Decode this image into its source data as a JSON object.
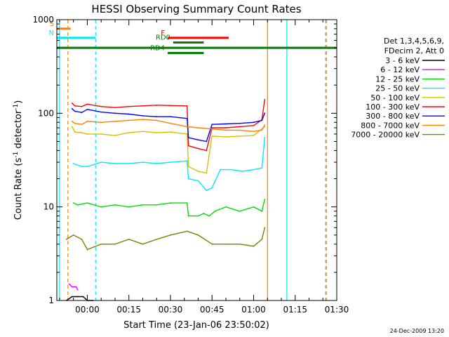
{
  "chart_data": {
    "type": "line",
    "title": "HESSI Observing Summary Count Rates",
    "xlabel": "Start Time (23-Jan-06 23:50:02)",
    "ylabel_pre": "Count Rate (s",
    "ylabel_sup1": "-1",
    "ylabel_mid": " detector",
    "ylabel_sup2": "-1",
    "ylabel_post": ")",
    "yscale": "log",
    "ylim": [
      1,
      1000
    ],
    "xlim_minutes": [
      -11,
      90
    ],
    "x_ticks": [
      {
        "m": 0,
        "label": "00:00"
      },
      {
        "m": 15,
        "label": "00:15"
      },
      {
        "m": 30,
        "label": "00:30"
      },
      {
        "m": 45,
        "label": "00:45"
      },
      {
        "m": 60,
        "label": "01:00"
      },
      {
        "m": 75,
        "label": "01:15"
      },
      {
        "m": 90,
        "label": "01:30"
      }
    ],
    "y_ticks": [
      {
        "v": 1,
        "label": "1"
      },
      {
        "v": 10,
        "label": "10"
      },
      {
        "v": 100,
        "label": "100"
      },
      {
        "v": 1000,
        "label": "1000"
      }
    ],
    "legend_header": [
      "Det 1,3,4,5,6,9,",
      "FDecim 2, Att 0"
    ],
    "series": [
      {
        "name": "3 - 6 keV",
        "color": "#000000",
        "points": [
          [
            -7.5,
            1
          ],
          [
            -5.5,
            1.1
          ],
          [
            -3.5,
            1.1
          ],
          [
            -1.5,
            1.1
          ],
          [
            0,
            1
          ],
          [
            2,
            1
          ]
        ]
      },
      {
        "name": "6 - 12 keV",
        "color": "#ff00ff",
        "points": [
          [
            -6.5,
            1.5
          ],
          [
            -5.5,
            1.4
          ],
          [
            -4,
            1.4
          ],
          [
            -3.5,
            1.3
          ]
        ]
      },
      {
        "name": "12 - 25 keV",
        "color": "#00dd00",
        "points": [
          [
            -5,
            11
          ],
          [
            -3.5,
            10.5
          ],
          [
            0,
            11
          ],
          [
            5,
            10
          ],
          [
            10,
            10.5
          ],
          [
            15,
            10
          ],
          [
            20,
            10.5
          ],
          [
            25,
            10.5
          ],
          [
            30,
            11
          ],
          [
            36,
            11
          ],
          [
            36.5,
            8
          ],
          [
            40,
            8
          ],
          [
            42,
            8.5
          ],
          [
            44,
            8
          ],
          [
            46,
            9
          ],
          [
            50,
            10
          ],
          [
            55,
            9
          ],
          [
            60,
            10
          ],
          [
            63,
            9
          ],
          [
            64,
            12
          ]
        ]
      },
      {
        "name": "25 - 50 keV",
        "color": "#00e8ff",
        "points": [
          [
            -5,
            29
          ],
          [
            -2,
            27
          ],
          [
            0,
            27
          ],
          [
            5,
            30
          ],
          [
            10,
            29
          ],
          [
            15,
            29
          ],
          [
            20,
            30
          ],
          [
            25,
            29
          ],
          [
            30,
            30
          ],
          [
            36,
            31
          ],
          [
            36.5,
            20
          ],
          [
            40,
            19
          ],
          [
            43,
            15
          ],
          [
            45,
            16
          ],
          [
            48,
            25
          ],
          [
            52,
            25
          ],
          [
            56,
            24
          ],
          [
            60,
            25
          ],
          [
            63,
            26
          ],
          [
            64,
            55
          ]
        ]
      },
      {
        "name": "50 - 100 keV",
        "color": "#d8c000",
        "points": [
          [
            -5.5,
            72
          ],
          [
            -4.5,
            63
          ],
          [
            -2,
            62
          ],
          [
            0,
            60
          ],
          [
            5,
            60
          ],
          [
            10,
            58
          ],
          [
            15,
            62
          ],
          [
            20,
            64
          ],
          [
            25,
            62
          ],
          [
            30,
            63
          ],
          [
            36,
            60
          ],
          [
            36.5,
            27
          ],
          [
            40,
            24
          ],
          [
            43,
            23
          ],
          [
            45,
            57
          ],
          [
            50,
            56
          ],
          [
            55,
            57
          ],
          [
            60,
            58
          ],
          [
            64,
            72
          ]
        ]
      },
      {
        "name": "100 - 300 keV",
        "color": "#ff0000",
        "points": [
          [
            -5.5,
            128
          ],
          [
            -4.5,
            120
          ],
          [
            -2,
            118
          ],
          [
            0,
            125
          ],
          [
            5,
            118
          ],
          [
            10,
            115
          ],
          [
            15,
            118
          ],
          [
            20,
            120
          ],
          [
            25,
            122
          ],
          [
            30,
            121
          ],
          [
            36,
            120
          ],
          [
            36.5,
            45
          ],
          [
            40,
            42
          ],
          [
            43,
            40
          ],
          [
            45,
            70
          ],
          [
            50,
            70
          ],
          [
            55,
            72
          ],
          [
            60,
            74
          ],
          [
            63,
            85
          ],
          [
            64,
            140
          ]
        ]
      },
      {
        "name": "300 - 800 keV",
        "color": "#0000ff",
        "points": [
          [
            -5.5,
            112
          ],
          [
            -4.5,
            105
          ],
          [
            -2,
            102
          ],
          [
            0,
            110
          ],
          [
            5,
            103
          ],
          [
            10,
            100
          ],
          [
            15,
            98
          ],
          [
            20,
            94
          ],
          [
            25,
            92
          ],
          [
            30,
            92
          ],
          [
            36,
            88
          ],
          [
            36.5,
            55
          ],
          [
            40,
            52
          ],
          [
            43,
            50
          ],
          [
            45,
            76
          ],
          [
            50,
            77
          ],
          [
            55,
            78
          ],
          [
            60,
            80
          ],
          [
            63,
            84
          ],
          [
            64,
            100
          ]
        ]
      },
      {
        "name": "800 - 7000 keV",
        "color": "#ff8000",
        "points": [
          [
            -5.5,
            82
          ],
          [
            -4.5,
            78
          ],
          [
            -2,
            76
          ],
          [
            0,
            82
          ],
          [
            5,
            80
          ],
          [
            10,
            82
          ],
          [
            15,
            84
          ],
          [
            20,
            86
          ],
          [
            25,
            84
          ],
          [
            30,
            78
          ],
          [
            36,
            72
          ],
          [
            40,
            70
          ],
          [
            45,
            68
          ],
          [
            50,
            66
          ],
          [
            55,
            66
          ],
          [
            60,
            64
          ],
          [
            63,
            66
          ],
          [
            64,
            75
          ]
        ]
      },
      {
        "name": "7000 - 20000 keV",
        "color": "#808000",
        "points": [
          [
            -7.5,
            4.5
          ],
          [
            -5,
            5
          ],
          [
            -2,
            4.5
          ],
          [
            0,
            3.5
          ],
          [
            5,
            4
          ],
          [
            10,
            4
          ],
          [
            15,
            4.5
          ],
          [
            20,
            4
          ],
          [
            25,
            4.5
          ],
          [
            30,
            5
          ],
          [
            36,
            5.5
          ],
          [
            40,
            5
          ],
          [
            45,
            4
          ],
          [
            50,
            4
          ],
          [
            55,
            4
          ],
          [
            60,
            3.8
          ],
          [
            63,
            4.5
          ],
          [
            64,
            6
          ]
        ]
      }
    ],
    "bars": [
      {
        "label": "S",
        "color": "#ff8000",
        "y": 800,
        "from": -11,
        "to": -6
      },
      {
        "label": "N",
        "color": "#00e8ff",
        "y": 640,
        "from": -11,
        "to": 3
      },
      {
        "label": "F",
        "color": "#ff0000",
        "y": 640,
        "from": 29,
        "to": 51
      },
      {
        "label": "RD0",
        "color": "#008000",
        "y": 570,
        "from": 31,
        "to": 42
      },
      {
        "label": "",
        "color": "#008000",
        "y": 500,
        "from": -11,
        "to": 90
      },
      {
        "label": "RD4",
        "color": "#008000",
        "y": 440,
        "from": 29,
        "to": 42
      }
    ],
    "vlines": [
      {
        "m": -10,
        "color": "#00e8ff",
        "dash": false
      },
      {
        "m": -7,
        "color": "#ff8000",
        "dash": true
      },
      {
        "m": 3,
        "color": "#00e8ff",
        "dash": true
      },
      {
        "m": 65,
        "color": "#ff8000",
        "dash": false
      },
      {
        "m": 72,
        "color": "#00e8ff",
        "dash": false
      },
      {
        "m": 86,
        "color": "#ff8000",
        "dash": true
      },
      {
        "m": 86.3,
        "color": "#00e8ff",
        "dash": true
      }
    ],
    "footer_date": "24-Dec-2009 13:20"
  }
}
